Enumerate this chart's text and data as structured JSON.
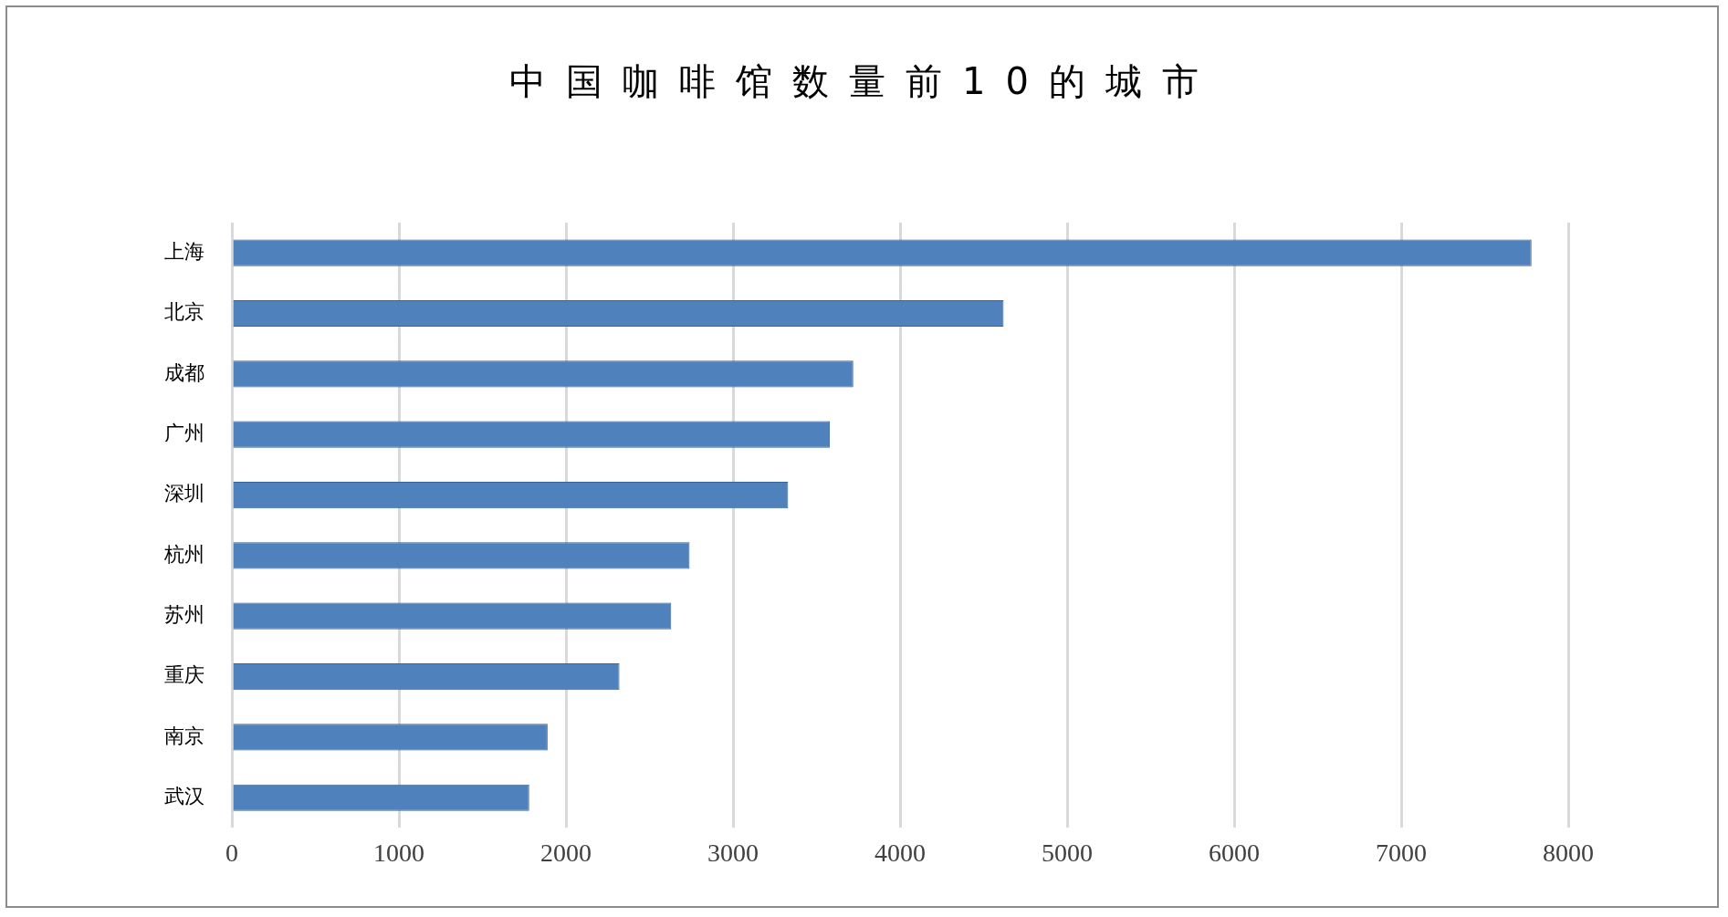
{
  "chart_data": {
    "type": "bar",
    "orientation": "horizontal",
    "title": "中国咖啡馆数量前10的城市",
    "categories": [
      "上海",
      "北京",
      "成都",
      "广州",
      "深圳",
      "杭州",
      "苏州",
      "重庆",
      "南京",
      "武汉"
    ],
    "values": [
      7780,
      4620,
      3720,
      3580,
      3330,
      2740,
      2630,
      2320,
      1890,
      1780
    ],
    "color": "#4f81bd",
    "xlim": [
      0,
      8000
    ],
    "xticks": [
      0,
      1000,
      2000,
      3000,
      4000,
      5000,
      6000,
      7000,
      8000
    ],
    "grid": "x",
    "legend": false
  }
}
